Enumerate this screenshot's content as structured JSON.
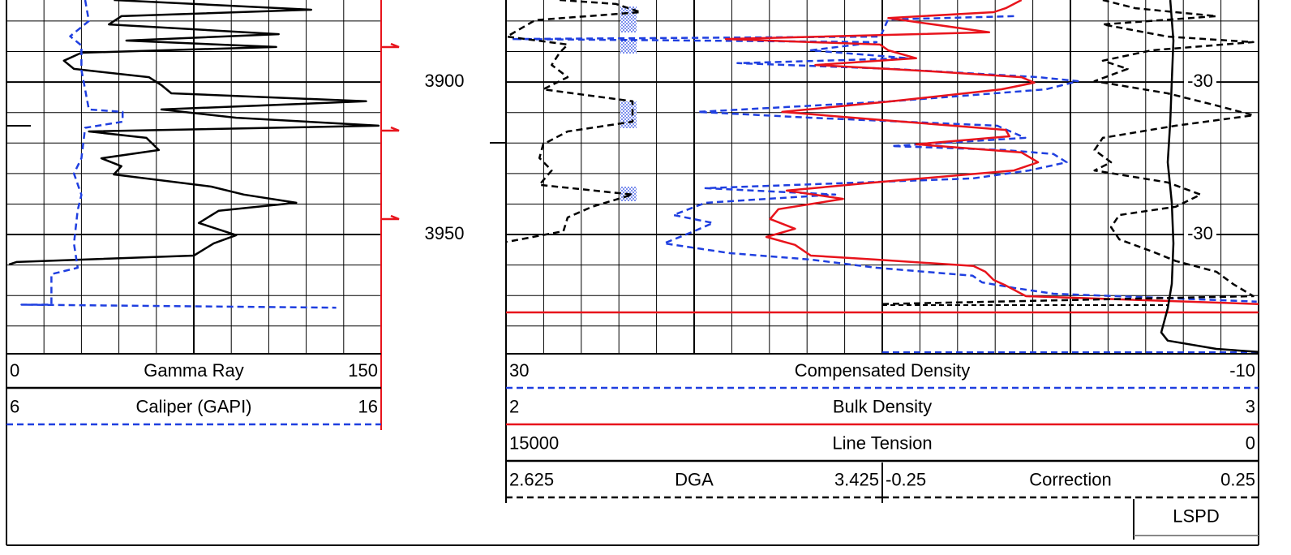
{
  "chart_data": {
    "type": "well_log",
    "ylim": [
      3873.1,
      3989.1
    ],
    "yticks": [
      3900,
      3950
    ],
    "minor_yticks": [
      3880,
      3890,
      3910,
      3920,
      3930,
      3940,
      3960,
      3970,
      3980
    ],
    "track_labels": [
      "-30",
      "-30"
    ],
    "tracks": [
      {
        "curves": [
          {
            "name": "Gamma Ray",
            "left": 0,
            "right": 150,
            "color": "#000000",
            "dash": false,
            "depth": [
              3873.1,
              3876.3,
              3878.4,
              3881.1,
              3884.3,
              3886.4,
              3888.5,
              3890.4,
              3893.0,
              3895.7,
              3898.4,
              3901.0,
              3903.7,
              3906.3,
              3909.0,
              3911.7,
              3914.3,
              3916.2,
              3918.3,
              3922.3,
              3925.0,
              3927.6,
              3930.3,
              3934.3,
              3936.9,
              3939.6,
              3942.2,
              3946.2,
              3950.2,
              3952.9,
              3956.9,
              3959.0,
              3959.8
            ],
            "values": [
              43,
              122,
              46,
              41,
              109,
              48,
              108,
              30,
              23,
              27,
              57,
              62,
              66,
              144,
              62,
              92,
              149,
              33,
              56,
              61,
              38,
              46,
              43,
              82,
              95,
              116,
              85,
              77,
              92,
              83,
              75,
              4,
              1
            ]
          },
          {
            "name": "Caliper (GAPI)",
            "left": 6,
            "right": 16,
            "color": "#1f3fe0",
            "dash": true,
            "depth": [
              3873.1,
              3880.0,
              3885.0,
              3888.0,
              3896.0,
              3909.0,
              3909.8,
              3913.0,
              3915.0,
              3925.0,
              3930.0,
              3937.0,
              3942.0,
              3953.0,
              3960.9,
              3963.0,
              3973.0,
              3973.0,
              3974.0
            ],
            "values": [
              8.1,
              8.2,
              7.7,
              8.0,
              8.0,
              8.2,
              9.1,
              9.1,
              8.1,
              8.0,
              7.8,
              8.0,
              7.9,
              7.8,
              7.9,
              7.2,
              7.2,
              6.4,
              14.8
            ]
          }
        ]
      },
      {
        "curves": [
          {
            "name": "Compensated Density",
            "left": 30,
            "right": -10,
            "color": "#1f3fe0",
            "dash": true,
            "depth": [
              3878.4,
              3879.5,
              3885.1,
              3885.9,
              3886.9,
              3889.6,
              3892.2,
              3893.8,
              3895.7,
              3898.4,
              3899.7,
              3902.4,
              3906.3,
              3909.8,
              3911.7,
              3914.3,
              3918.3,
              3921.0,
              3922.3,
              3923.6,
              3926.3,
              3929.0,
              3931.6,
              3934.8,
              3936.9,
              3939.6,
              3943.6,
              3946.2,
              3948.9,
              3952.9,
              3956.1,
              3958.2,
              3960.9,
              3963.5,
              3965.7,
              3967.5,
              3969.4,
              3972.0
            ],
            "values": [
              3.0,
              9.7,
              10.1,
              29.7,
              10.3,
              13.8,
              8.6,
              17.7,
              9.5,
              1.7,
              -0.4,
              1.3,
              9.5,
              19.8,
              13.8,
              3.9,
              2.4,
              9.5,
              3.5,
              0.9,
              0.2,
              2.2,
              5.2,
              19.4,
              12.5,
              19.4,
              21.1,
              19.0,
              20.0,
              21.6,
              18.1,
              13.8,
              10.3,
              5.2,
              4.7,
              3.0,
              0.9,
              -9.9
            ]
          },
          {
            "name": "Bulk Density",
            "left": 2,
            "right": 3,
            "color": "#e8141c",
            "dash": false,
            "depth": [
              3873.1,
              3875.8,
              3877.1,
              3879.0,
              3883.7,
              3885.9,
              3887.7,
              3889.6,
              3892.2,
              3894.4,
              3896.5,
              3898.4,
              3900.2,
              3902.4,
              3906.3,
              3909.8,
              3912.5,
              3915.7,
              3917.8,
              3920.4,
              3923.1,
              3926.3,
              3929.0,
              3932.9,
              3935.6,
              3938.3,
              3941.7,
              3944.9,
              3948.1,
              3950.8,
              3953.4,
              3956.9,
              3958.2,
              3960.3,
              3962.2,
              3964.9,
              3966.7,
              3970.2,
              3972.8
            ],
            "values": [
              2.685,
              2.664,
              2.648,
              2.508,
              2.642,
              2.292,
              2.497,
              2.508,
              2.545,
              2.411,
              2.567,
              2.685,
              2.702,
              2.658,
              2.513,
              2.367,
              2.502,
              2.664,
              2.669,
              2.545,
              2.685,
              2.707,
              2.675,
              2.491,
              2.373,
              2.448,
              2.362,
              2.351,
              2.384,
              2.346,
              2.384,
              2.405,
              2.491,
              2.621,
              2.637,
              2.648,
              2.664,
              2.691,
              3.0
            ]
          },
          {
            "name": "Line Tension",
            "left": 15000,
            "right": 0,
            "color": "#000000",
            "dash": false,
            "depth": [
              3873.1,
              3886.4,
              3899.7,
              3913.0,
              3926.3,
              3939.6,
              3952.9,
              3966.2,
              3974.2,
              3982.1,
              3984.8,
              3987.5,
              3988.5
            ],
            "values": [
              1761,
              1697,
              1729,
              1761,
              1810,
              1729,
              1697,
              1729,
              1810,
              1939,
              1810,
              840,
              0
            ]
          },
          {
            "name": "DGA",
            "left": 2.625,
            "right": 3.425,
            "color": "#000000",
            "dash": true,
            "depth": [
              3873.1,
              3874.4,
              3877.1,
              3879.7,
              3885.1,
              3887.7,
              3890.4,
              3894.4,
              3898.4,
              3902.4,
              3906.3,
              3913.0,
              3916.2,
              3920.4,
              3924.9,
              3929.0,
              3933.7,
              3936.9,
              3940.9,
              3944.4,
              3948.9,
              3952.4
            ],
            "values": [
              2.739,
              2.859,
              2.911,
              2.687,
              2.627,
              2.756,
              2.739,
              2.722,
              2.756,
              2.704,
              2.894,
              2.894,
              2.756,
              2.704,
              2.696,
              2.722,
              2.696,
              2.894,
              2.808,
              2.756,
              2.747,
              2.627
            ]
          },
          {
            "name": "Correction",
            "left": -0.25,
            "right": 0.25,
            "color": "#000000",
            "dash": true,
            "depth": [
              3873.1,
              3875.8,
              3878.4,
              3881.1,
              3885.1,
              3886.9,
              3889.6,
              3893.0,
              3895.7,
              3899.7,
              3903.7,
              3907.7,
              3910.9,
              3914.3,
              3918.3,
              3922.3,
              3926.3,
              3929.0,
              3932.9,
              3936.9,
              3940.9,
              3943.6,
              3947.6,
              3951.6,
              3955.5,
              3958.7,
              3962.2,
              3966.2,
              3970.2,
              3972.8
            ],
            "values": [
              0.043,
              0.086,
              0.194,
              0.043,
              0.129,
              0.243,
              0.108,
              0.043,
              0.076,
              0.032,
              0.129,
              0.194,
              0.243,
              0.14,
              0.043,
              0.032,
              0.054,
              0.032,
              0.129,
              0.173,
              0.14,
              0.065,
              0.054,
              0.065,
              0.108,
              0.14,
              0.194,
              0.216,
              0.243,
              -0.25
            ]
          },
          {
            "name": "LSPD"
          }
        ]
      }
    ]
  }
}
